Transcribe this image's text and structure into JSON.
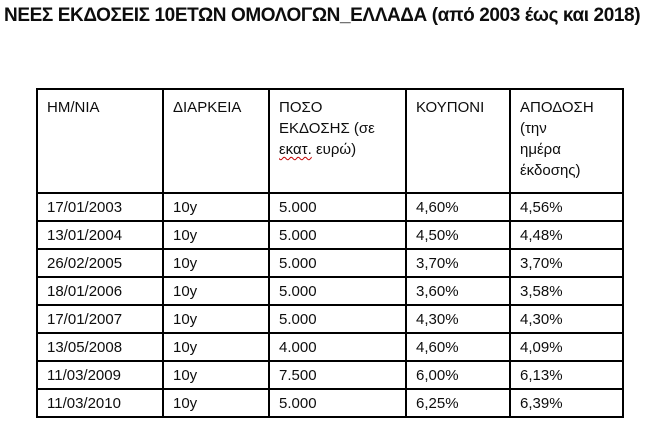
{
  "title": "ΝΕΕΣ ΕΚΔΟΣΕΙΣ 10ΕΤΩΝ ΟΜΟΛΟΓΩΝ_ΕΛΛΑΔΑ (από 2003 έως και 2018)",
  "colors": {
    "text": "#0d0d0d",
    "border": "#000000",
    "background": "#ffffff",
    "spellcheck_squiggle": "#c00000"
  },
  "table": {
    "headers": {
      "date": "ΗΜ/ΝΙΑ",
      "duration": "ΔΙΑΡΚΕΙΑ",
      "amount_prefix": "ΠΟΣΟ\nΕΚΔΟΣΗΣ (σε\n",
      "amount_typo": "εκατ.",
      "amount_suffix": " ευρώ)",
      "coupon": "ΚΟΥΠΟΝΙ",
      "yield": "ΑΠΟΔΟΣΗ\n(την\nημέρα\nέκδοσης)"
    },
    "rows": [
      {
        "date": "17/01/2003",
        "duration": "10y",
        "amount": "5.000",
        "coupon": "4,60%",
        "yield": "4,56%"
      },
      {
        "date": "13/01/2004",
        "duration": "10y",
        "amount": "5.000",
        "coupon": "4,50%",
        "yield": "4,48%"
      },
      {
        "date": "26/02/2005",
        "duration": "10y",
        "amount": "5.000",
        "coupon": "3,70%",
        "yield": "3,70%"
      },
      {
        "date": "18/01/2006",
        "duration": "10y",
        "amount": "5.000",
        "coupon": "3,60%",
        "yield": "3,58%"
      },
      {
        "date": "17/01/2007",
        "duration": "10y",
        "amount": "5.000",
        "coupon": "4,30%",
        "yield": "4,30%"
      },
      {
        "date": "13/05/2008",
        "duration": "10y",
        "amount": "4.000",
        "coupon": "4,60%",
        "yield": "4,09%"
      },
      {
        "date": "11/03/2009",
        "duration": "10y",
        "amount": "7.500",
        "coupon": "6,00%",
        "yield": "6,13%"
      },
      {
        "date": "11/03/2010",
        "duration": "10y",
        "amount": "5.000",
        "coupon": "6,25%",
        "yield": "6,39%"
      }
    ]
  }
}
